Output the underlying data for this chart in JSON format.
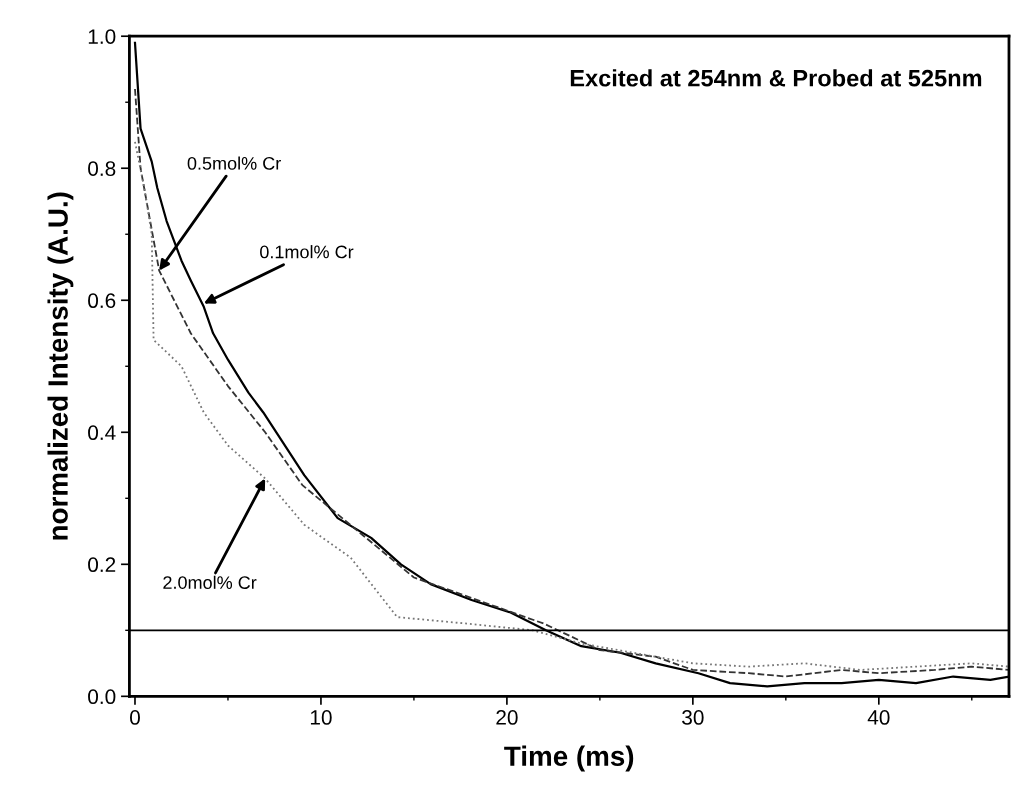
{
  "chart_data": {
    "type": "line",
    "xlabel": "Time (ms)",
    "ylabel": "normalized Intensity (A.U.)",
    "xlim": [
      -0.3,
      47
    ],
    "ylim": [
      0.0,
      1.0
    ],
    "xticks": [
      0,
      10,
      20,
      30,
      40
    ],
    "yticks": [
      {
        "value": 0.0,
        "label": "0.0"
      },
      0.2,
      0.4,
      0.6,
      0.8,
      {
        "value": 1.0,
        "label": "1.0"
      }
    ],
    "grid": false,
    "legend": false,
    "series": [
      {
        "color": "#000000",
        "line_style": "solid",
        "x": [
          0,
          0.3,
          0.9,
          1.2,
          1.7,
          2.5,
          3.0,
          3.7,
          4.2,
          5.0,
          6.1,
          6.9,
          9.1,
          10.9,
          12.7,
          14.3,
          15.9,
          18.1,
          20.2,
          22.1,
          24.0,
          26.1,
          28,
          30.3,
          32,
          34,
          36,
          38,
          40,
          42,
          44,
          46,
          47
        ],
        "values": [
          0.99,
          0.86,
          0.81,
          0.77,
          0.72,
          0.66,
          0.63,
          0.59,
          0.55,
          0.51,
          0.46,
          0.43,
          0.335,
          0.27,
          0.24,
          0.2,
          0.17,
          0.146,
          0.127,
          0.1,
          0.076,
          0.066,
          0.05,
          0.035,
          0.02,
          0.015,
          0.02,
          0.02,
          0.025,
          0.02,
          0.03,
          0.025,
          0.03
        ]
      },
      {
        "color": "#333333",
        "line_style": "dashed",
        "x": [
          0,
          0.3,
          1.3,
          3,
          5,
          7,
          9,
          12,
          15,
          18,
          20,
          22,
          25,
          28,
          30,
          33,
          35,
          38,
          40,
          43,
          45,
          47
        ],
        "values": [
          0.92,
          0.8,
          0.645,
          0.55,
          0.47,
          0.4,
          0.32,
          0.25,
          0.18,
          0.15,
          0.13,
          0.11,
          0.07,
          0.06,
          0.04,
          0.035,
          0.03,
          0.04,
          0.035,
          0.04,
          0.045,
          0.04
        ]
      },
      {
        "color": "#777777",
        "line_style": "dotted",
        "x": [
          0,
          0.5,
          0.9,
          1.0,
          2.5,
          3.7,
          5,
          7,
          9.1,
          11.6,
          14.1,
          17.9,
          21.4,
          24,
          27,
          30,
          33,
          36,
          39,
          42,
          45,
          47
        ],
        "values": [
          0.84,
          0.77,
          0.7,
          0.54,
          0.5,
          0.43,
          0.38,
          0.33,
          0.26,
          0.21,
          0.12,
          0.11,
          0.1,
          0.08,
          0.065,
          0.05,
          0.045,
          0.05,
          0.04,
          0.045,
          0.05,
          0.045
        ]
      }
    ],
    "ref_lines": [
      {
        "axis": "y",
        "value": 0.1,
        "color": "#000000",
        "line_style": "solid"
      }
    ],
    "annotations": [
      "Excited at 254nm & Probed at 525nm",
      {
        "text": "0.5mol% Cr",
        "x": 1.3,
        "y": 0.645
      },
      {
        "text": "0.1mol% Cr",
        "x": 3.7,
        "y": 0.595
      },
      {
        "text": "2.0mol% Cr",
        "x": 7,
        "y": 0.33
      }
    ]
  }
}
